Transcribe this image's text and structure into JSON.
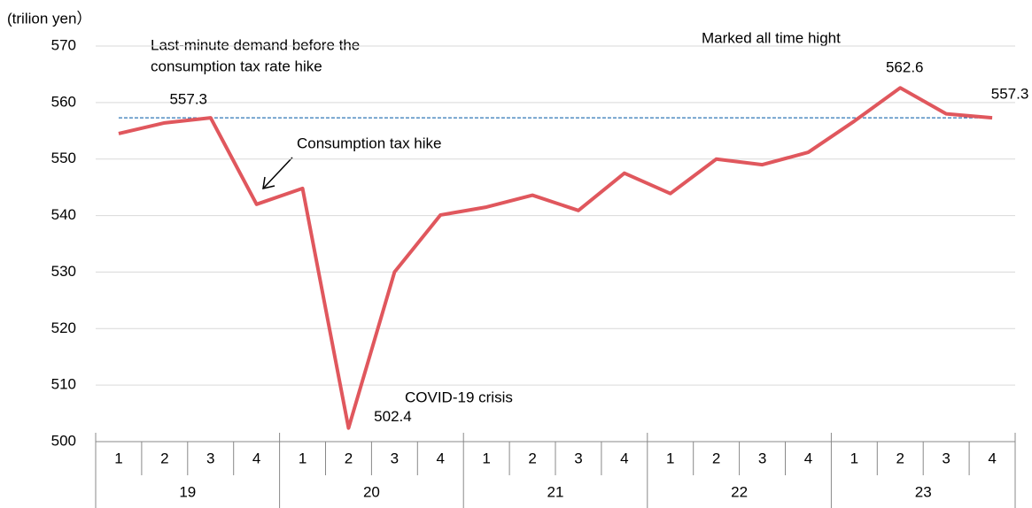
{
  "chart_data": {
    "type": "line",
    "y_label": "(trilion yen）",
    "categories": [
      "1",
      "2",
      "3",
      "4",
      "1",
      "2",
      "3",
      "4",
      "1",
      "2",
      "3",
      "4",
      "1",
      "2",
      "3",
      "4",
      "1",
      "2",
      "3",
      "4"
    ],
    "years": [
      "19",
      "20",
      "21",
      "22",
      "23"
    ],
    "values": [
      554.5,
      556.4,
      557.3,
      542.0,
      544.8,
      502.4,
      530.0,
      540.1,
      541.5,
      543.6,
      540.9,
      547.5,
      543.9,
      550.0,
      549.0,
      551.2,
      556.7,
      562.6,
      558.0,
      557.3
    ],
    "color": "#e0575d",
    "labeled_points": [
      2,
      5,
      17,
      19
    ],
    "reference_line": {
      "value": 557.3,
      "color": "#2e75b6"
    },
    "annotations": {
      "last_minute": [
        "Last-minute demand before the",
        "consumption tax rate hike"
      ],
      "tax_hike": "Consumption tax hike",
      "covid": "COVID-19 crisis",
      "high": "Marked all time hight"
    },
    "ylim": [
      500,
      570
    ],
    "yticks": [
      500,
      510,
      520,
      530,
      540,
      550,
      560,
      570
    ],
    "grid": true
  }
}
